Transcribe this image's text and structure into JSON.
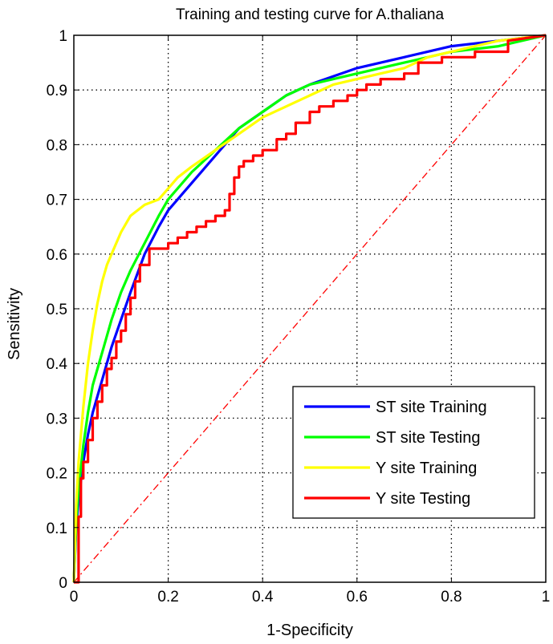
{
  "chart_data": {
    "type": "line",
    "title": "Training and testing curve for A.thaliana",
    "xlabel": "1-Specificity",
    "ylabel": "Sensitivity",
    "xlim": [
      0,
      1
    ],
    "ylim": [
      0,
      1
    ],
    "xticks": [
      0,
      0.2,
      0.4,
      0.6,
      0.8,
      1
    ],
    "yticks": [
      0,
      0.1,
      0.2,
      0.3,
      0.4,
      0.5,
      0.6,
      0.7,
      0.8,
      0.9,
      1
    ],
    "xtick_labels": [
      "0",
      "0.2",
      "0.4",
      "0.6",
      "0.8",
      "1"
    ],
    "ytick_labels": [
      "0",
      "0.1",
      "0.2",
      "0.3",
      "0.4",
      "0.5",
      "0.6",
      "0.7",
      "0.8",
      "0.9",
      "1"
    ],
    "grid": true,
    "legend_position": "lower-right",
    "series": [
      {
        "name": "ST site Training",
        "color": "#0000ff",
        "style": "solid",
        "x": [
          0,
          0.005,
          0.01,
          0.02,
          0.03,
          0.04,
          0.05,
          0.06,
          0.08,
          0.1,
          0.12,
          0.15,
          0.18,
          0.2,
          0.25,
          0.3,
          0.35,
          0.4,
          0.45,
          0.5,
          0.6,
          0.7,
          0.8,
          0.9,
          1.0
        ],
        "y": [
          0,
          0.1,
          0.15,
          0.22,
          0.27,
          0.31,
          0.34,
          0.37,
          0.43,
          0.48,
          0.53,
          0.6,
          0.65,
          0.68,
          0.73,
          0.78,
          0.83,
          0.86,
          0.89,
          0.91,
          0.94,
          0.96,
          0.98,
          0.99,
          1.0
        ]
      },
      {
        "name": "ST site Testing",
        "color": "#00ff00",
        "style": "solid",
        "x": [
          0,
          0.005,
          0.01,
          0.02,
          0.03,
          0.04,
          0.05,
          0.06,
          0.08,
          0.1,
          0.12,
          0.15,
          0.18,
          0.2,
          0.25,
          0.3,
          0.35,
          0.4,
          0.45,
          0.5,
          0.6,
          0.7,
          0.8,
          0.9,
          1.0
        ],
        "y": [
          0,
          0.11,
          0.17,
          0.25,
          0.31,
          0.36,
          0.39,
          0.42,
          0.48,
          0.53,
          0.57,
          0.62,
          0.67,
          0.7,
          0.75,
          0.79,
          0.83,
          0.86,
          0.89,
          0.91,
          0.93,
          0.95,
          0.97,
          0.98,
          1.0
        ]
      },
      {
        "name": "Y site Training",
        "color": "#ffff00",
        "style": "solid",
        "x": [
          0,
          0.005,
          0.01,
          0.02,
          0.03,
          0.04,
          0.05,
          0.06,
          0.07,
          0.08,
          0.1,
          0.12,
          0.15,
          0.18,
          0.2,
          0.22,
          0.25,
          0.3,
          0.35,
          0.4,
          0.45,
          0.5,
          0.55,
          0.6,
          0.65,
          0.7,
          0.75,
          0.8,
          0.85,
          0.9,
          0.95,
          1.0
        ],
        "y": [
          0,
          0.14,
          0.22,
          0.32,
          0.4,
          0.46,
          0.51,
          0.55,
          0.58,
          0.6,
          0.64,
          0.67,
          0.69,
          0.7,
          0.72,
          0.74,
          0.76,
          0.79,
          0.82,
          0.85,
          0.87,
          0.89,
          0.91,
          0.92,
          0.93,
          0.94,
          0.96,
          0.97,
          0.98,
          0.99,
          0.995,
          1.0
        ]
      },
      {
        "name": "Y site Testing",
        "color": "#ff0000",
        "style": "solid",
        "x": [
          0,
          0.01,
          0.01,
          0.015,
          0.015,
          0.02,
          0.02,
          0.03,
          0.03,
          0.04,
          0.04,
          0.05,
          0.05,
          0.06,
          0.06,
          0.07,
          0.07,
          0.08,
          0.08,
          0.09,
          0.09,
          0.1,
          0.1,
          0.11,
          0.11,
          0.12,
          0.12,
          0.13,
          0.13,
          0.14,
          0.14,
          0.16,
          0.16,
          0.2,
          0.2,
          0.22,
          0.22,
          0.24,
          0.24,
          0.26,
          0.26,
          0.28,
          0.28,
          0.3,
          0.3,
          0.32,
          0.32,
          0.33,
          0.33,
          0.34,
          0.34,
          0.35,
          0.35,
          0.36,
          0.36,
          0.38,
          0.38,
          0.4,
          0.4,
          0.43,
          0.43,
          0.45,
          0.45,
          0.47,
          0.47,
          0.5,
          0.5,
          0.52,
          0.52,
          0.55,
          0.55,
          0.58,
          0.58,
          0.6,
          0.6,
          0.62,
          0.62,
          0.65,
          0.65,
          0.7,
          0.7,
          0.73,
          0.73,
          0.78,
          0.78,
          0.85,
          0.85,
          0.92,
          0.92,
          1.0
        ],
        "y": [
          0,
          0,
          0.12,
          0.12,
          0.19,
          0.19,
          0.22,
          0.22,
          0.26,
          0.26,
          0.3,
          0.3,
          0.33,
          0.33,
          0.36,
          0.36,
          0.39,
          0.39,
          0.41,
          0.41,
          0.44,
          0.44,
          0.46,
          0.46,
          0.49,
          0.49,
          0.52,
          0.52,
          0.55,
          0.55,
          0.58,
          0.58,
          0.61,
          0.61,
          0.62,
          0.62,
          0.63,
          0.63,
          0.64,
          0.64,
          0.65,
          0.65,
          0.66,
          0.66,
          0.67,
          0.67,
          0.68,
          0.68,
          0.71,
          0.71,
          0.74,
          0.74,
          0.76,
          0.76,
          0.77,
          0.77,
          0.78,
          0.78,
          0.79,
          0.79,
          0.81,
          0.81,
          0.82,
          0.82,
          0.84,
          0.84,
          0.86,
          0.86,
          0.87,
          0.87,
          0.88,
          0.88,
          0.89,
          0.89,
          0.9,
          0.9,
          0.91,
          0.91,
          0.92,
          0.92,
          0.93,
          0.93,
          0.95,
          0.95,
          0.96,
          0.96,
          0.97,
          0.97,
          0.99,
          1.0
        ]
      },
      {
        "name": "",
        "color": "#ff0000",
        "style": "dash-dot",
        "x": [
          0,
          1
        ],
        "y": [
          0,
          1
        ]
      }
    ]
  }
}
